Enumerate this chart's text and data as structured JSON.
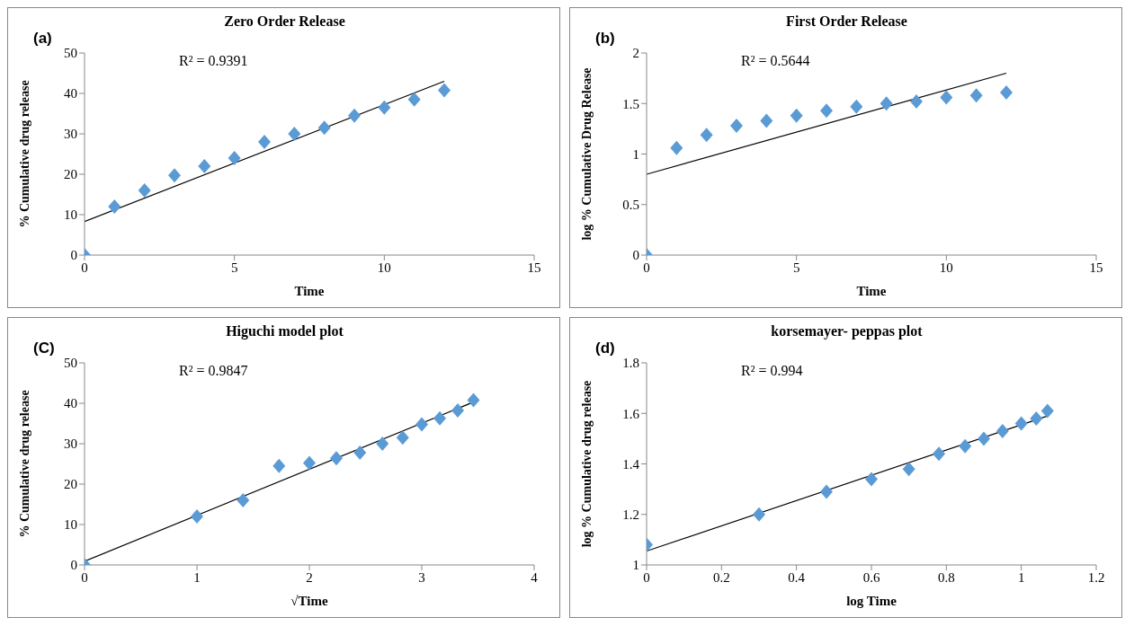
{
  "chart_data": [
    {
      "type": "scatter",
      "title": "Zero Order Release",
      "xlabel": "Time",
      "ylabel": "% Cumulative drug release",
      "annotations": [
        "(a)",
        "R² = 0.9391"
      ],
      "x": [
        0,
        1,
        2,
        3,
        4,
        5,
        6,
        7,
        8,
        9,
        10,
        11,
        12
      ],
      "xlim": [
        0,
        15
      ],
      "xticks": [
        0,
        5,
        10,
        15
      ],
      "ylim": [
        0,
        50
      ],
      "yticks": [
        0,
        10,
        20,
        30,
        40,
        50
      ],
      "series": [
        {
          "color": "#5b9bd5",
          "marker": "diamond",
          "values": [
            0,
            12,
            16,
            19.7,
            22,
            24,
            28,
            30,
            31.5,
            34.5,
            36.5,
            38.5,
            40.8
          ]
        },
        {
          "type": "line",
          "color": "#000000",
          "marker": "none",
          "x": [
            0,
            12
          ],
          "values": [
            8.3,
            43
          ]
        }
      ]
    },
    {
      "type": "scatter",
      "title": "First Order Release",
      "xlabel": "Time",
      "ylabel": "log % Cumulative Drug Release",
      "annotations": [
        "(b)",
        "R² = 0.5644"
      ],
      "x": [
        0,
        1,
        2,
        3,
        4,
        5,
        6,
        7,
        8,
        9,
        10,
        11,
        12
      ],
      "xlim": [
        0,
        15
      ],
      "xticks": [
        0,
        5,
        10,
        15
      ],
      "ylim": [
        0,
        2
      ],
      "yticks": [
        0,
        0.5,
        1,
        1.5,
        2
      ],
      "series": [
        {
          "color": "#5b9bd5",
          "marker": "diamond",
          "values": [
            0,
            1.06,
            1.19,
            1.28,
            1.33,
            1.38,
            1.43,
            1.47,
            1.5,
            1.52,
            1.56,
            1.58,
            1.61
          ]
        },
        {
          "type": "line",
          "color": "#000000",
          "marker": "none",
          "x": [
            0,
            12
          ],
          "values": [
            0.8,
            1.8
          ]
        }
      ]
    },
    {
      "type": "scatter",
      "title": "Higuchi  model plot",
      "xlabel": "√Time",
      "ylabel": "% Cumulative drug release",
      "annotations": [
        "(C)",
        "R² = 0.9847"
      ],
      "x": [
        0,
        1,
        1.41,
        1.73,
        2,
        2.24,
        2.45,
        2.65,
        2.83,
        3,
        3.16,
        3.32,
        3.46
      ],
      "xlim": [
        0,
        4
      ],
      "xticks": [
        0,
        1,
        2,
        3,
        4
      ],
      "ylim": [
        0,
        50
      ],
      "yticks": [
        0,
        10,
        20,
        30,
        40,
        50
      ],
      "series": [
        {
          "color": "#5b9bd5",
          "marker": "diamond",
          "values": [
            0,
            12,
            16,
            24.5,
            25.2,
            26.4,
            27.8,
            30,
            31.5,
            34.8,
            36.3,
            38.2,
            40.8
          ]
        },
        {
          "type": "line",
          "color": "#000000",
          "marker": "none",
          "x": [
            0,
            3.46
          ],
          "values": [
            0.9,
            40.3
          ]
        }
      ]
    },
    {
      "type": "scatter",
      "title": "korsemayer- peppas plot",
      "xlabel": "log Time",
      "ylabel": "log % Cumulative drug release",
      "annotations": [
        "(d)",
        "R² = 0.994"
      ],
      "x": [
        0,
        0.3,
        0.48,
        0.6,
        0.7,
        0.78,
        0.85,
        0.9,
        0.95,
        1,
        1.04,
        1.07
      ],
      "xlim": [
        0,
        1.2
      ],
      "xticks": [
        0,
        0.2,
        0.4,
        0.6,
        0.8,
        1,
        1.2
      ],
      "ylim": [
        1,
        1.8
      ],
      "yticks": [
        1,
        1.2,
        1.4,
        1.6,
        1.8
      ],
      "series": [
        {
          "color": "#5b9bd5",
          "marker": "diamond",
          "values": [
            1.08,
            1.2,
            1.29,
            1.34,
            1.38,
            1.44,
            1.47,
            1.5,
            1.53,
            1.56,
            1.58,
            1.61
          ]
        },
        {
          "type": "line",
          "color": "#000000",
          "marker": "none",
          "x": [
            0,
            1.07
          ],
          "values": [
            1.055,
            1.59
          ]
        }
      ]
    }
  ]
}
